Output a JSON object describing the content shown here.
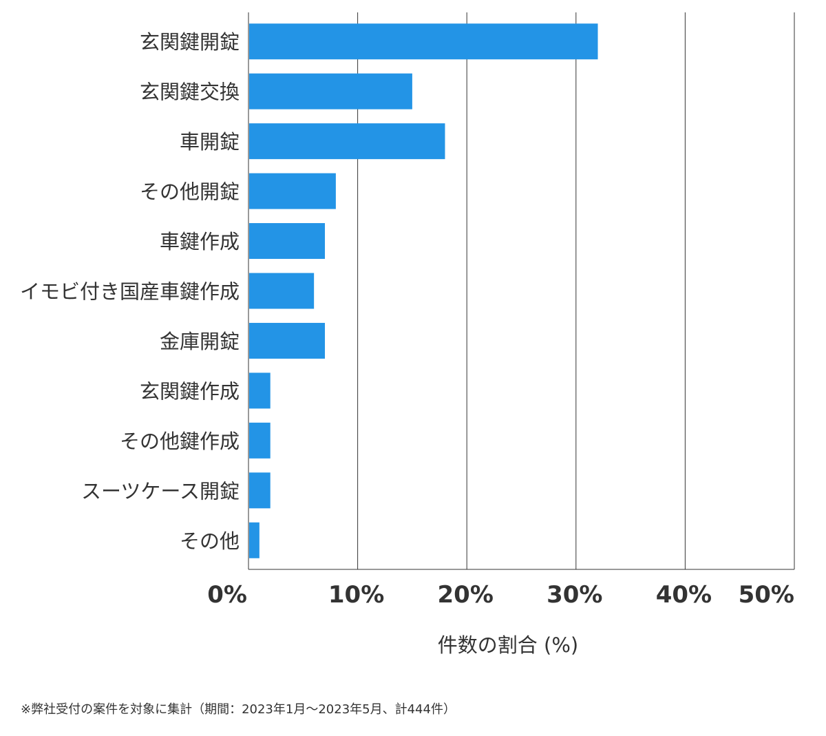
{
  "chart_data": {
    "type": "bar",
    "orientation": "horizontal",
    "categories": [
      "玄関鍵開錠",
      "玄関鍵交換",
      "車開錠",
      "その他開錠",
      "車鍵作成",
      "イモビ付き国産車鍵作成",
      "金庫開錠",
      "玄関鍵作成",
      "その他鍵作成",
      "スーツケース開錠",
      "その他"
    ],
    "values": [
      32.0,
      15.0,
      18.0,
      8.0,
      7.0,
      6.0,
      7.0,
      2.0,
      2.0,
      2.0,
      1.0
    ],
    "xlabel": "件数の割合 (%)",
    "xlim": [
      0,
      50
    ],
    "xticks": [
      0,
      10,
      20,
      30,
      40,
      50
    ],
    "xtick_labels": [
      "0%",
      "10%",
      "20%",
      "30%",
      "40%",
      "50%"
    ],
    "grid": "vertical",
    "legend": "none",
    "bar_color": "#2394e6"
  },
  "footnote": "※弊社受付の案件を対象に集計（期間：2023年1月～2023年5月、計444件）"
}
